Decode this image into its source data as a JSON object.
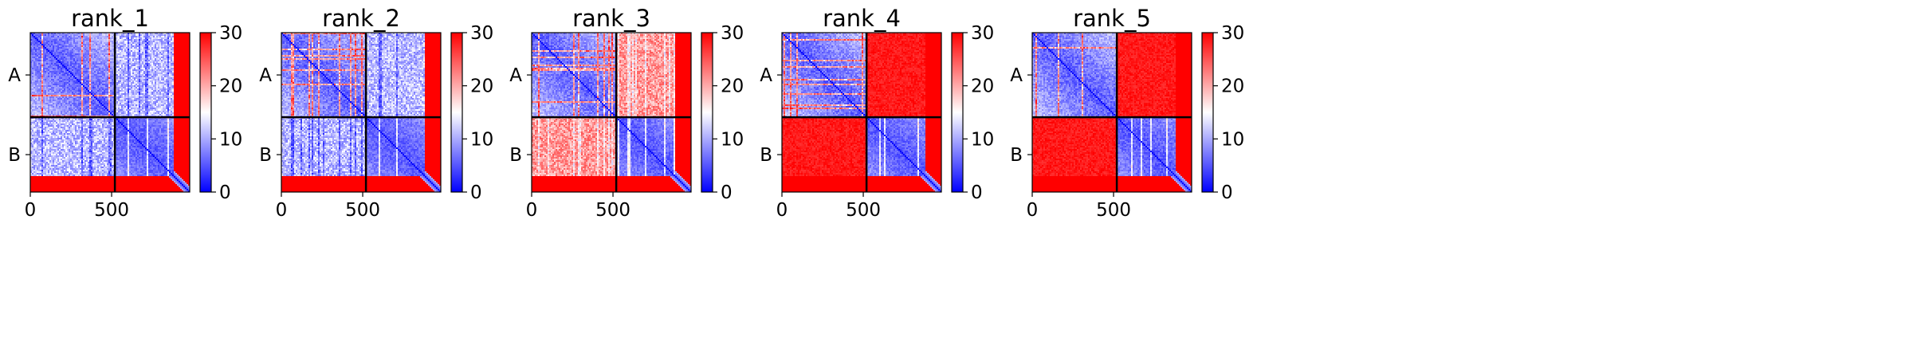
{
  "chart_data": [
    {
      "type": "heatmap",
      "title": "rank_1",
      "x_ticks": [
        0,
        500
      ],
      "y_ticks": [
        "A",
        "B"
      ],
      "colorbar": {
        "min": 0,
        "max": 30,
        "ticks": [
          0,
          10,
          20,
          30
        ]
      },
      "inter_chain_level": "low"
    },
    {
      "type": "heatmap",
      "title": "rank_2",
      "x_ticks": [
        0,
        500
      ],
      "y_ticks": [
        "A",
        "B"
      ],
      "colorbar": {
        "min": 0,
        "max": 30,
        "ticks": [
          0,
          10,
          20,
          30
        ]
      },
      "inter_chain_level": "low"
    },
    {
      "type": "heatmap",
      "title": "rank_3",
      "x_ticks": [
        0,
        500
      ],
      "y_ticks": [
        "A",
        "B"
      ],
      "colorbar": {
        "min": 0,
        "max": 30,
        "ticks": [
          0,
          10,
          20,
          30
        ]
      },
      "inter_chain_level": "medium"
    },
    {
      "type": "heatmap",
      "title": "rank_4",
      "x_ticks": [
        0,
        500
      ],
      "y_ticks": [
        "A",
        "B"
      ],
      "colorbar": {
        "min": 0,
        "max": 30,
        "ticks": [
          0,
          10,
          20,
          30
        ]
      },
      "inter_chain_level": "high"
    },
    {
      "type": "heatmap",
      "title": "rank_5",
      "x_ticks": [
        0,
        500
      ],
      "y_ticks": [
        "A",
        "B"
      ],
      "colorbar": {
        "min": 0,
        "max": 30,
        "ticks": [
          0,
          10,
          20,
          30
        ]
      },
      "inter_chain_level": "high"
    }
  ],
  "colors": {
    "low": "#0000ff",
    "mid": "#ffffff",
    "high": "#ff0000",
    "divider": "#000000"
  },
  "sequence": {
    "length": 980,
    "chain_boundary": 520,
    "chain_A_tail_start": 870,
    "chain_B_tail_start": 880
  }
}
